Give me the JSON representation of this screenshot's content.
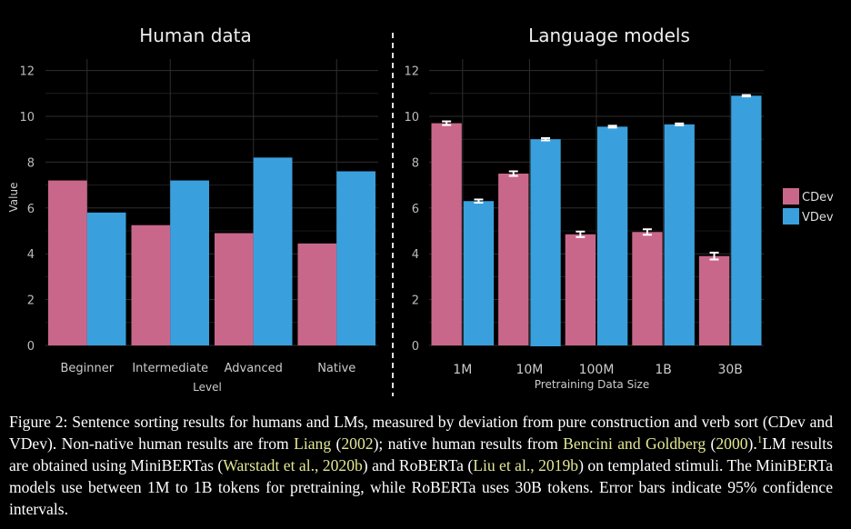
{
  "colors": {
    "background": "#000000",
    "CDev": "#c9678a",
    "VDev": "#3aa0dd",
    "grid": "#2e2e2e",
    "error_bar": "#ffffff",
    "link": "#e4e893"
  },
  "chart_data": [
    {
      "type": "bar",
      "title": "Human data",
      "xlabel": "Level",
      "ylabel": "Value",
      "ylim": [
        0,
        12.5
      ],
      "yticks": [
        0,
        2,
        4,
        6,
        8,
        10,
        12
      ],
      "categories": [
        "Beginner",
        "Intermediate",
        "Advanced",
        "Native"
      ],
      "series": [
        {
          "name": "CDev",
          "values": [
            7.2,
            5.25,
            4.9,
            4.45
          ]
        },
        {
          "name": "VDev",
          "values": [
            5.8,
            7.2,
            8.2,
            7.6
          ]
        }
      ],
      "grid": true
    },
    {
      "type": "bar",
      "title": "Language models",
      "xlabel": "Pretraining Data Size",
      "ylabel": "",
      "ylim": [
        0,
        12.5
      ],
      "yticks": [
        0,
        2,
        4,
        6,
        8,
        10,
        12
      ],
      "categories": [
        "1M",
        "10M",
        "100M",
        "1B",
        "30B"
      ],
      "series": [
        {
          "name": "CDev",
          "values": [
            9.7,
            7.5,
            4.85,
            4.95,
            3.9
          ],
          "error": [
            0.08,
            0.1,
            0.12,
            0.12,
            0.15
          ]
        },
        {
          "name": "VDev",
          "values": [
            6.3,
            9.0,
            9.55,
            9.65,
            10.9
          ],
          "error": [
            0.07,
            0.05,
            0.04,
            0.04,
            0.03
          ]
        }
      ],
      "legend": {
        "position": "right",
        "entries": [
          "CDev",
          "VDev"
        ]
      },
      "grid": true
    }
  ],
  "caption": {
    "p1": "Figure 2: Sentence sorting results for humans and LMs, measured by deviation from pure construction and verb sort (CDev and VDev).  Non-native human results are from ",
    "cite_liang": "Liang",
    "p2": " (",
    "cite_liang_year": "2002",
    "p3": "); native human results from ",
    "cite_bencini": "Bencini and Goldberg",
    "p4": " (",
    "cite_bencini_year": "2000",
    "p5": ").",
    "footnote_mark": "1",
    "p6": "LM results are obtained using MiniBERTas (",
    "cite_warstadt": "Warstadt et al., 2020b",
    "p7": ") and RoBERTa (",
    "cite_liu": "Liu et al., 2019b",
    "p8": ") on templated stimuli.  The MiniBERTa models use between 1M to 1B tokens for pretraining, while RoBERTa uses 30B tokens.  Error bars indicate 95% confidence intervals."
  }
}
